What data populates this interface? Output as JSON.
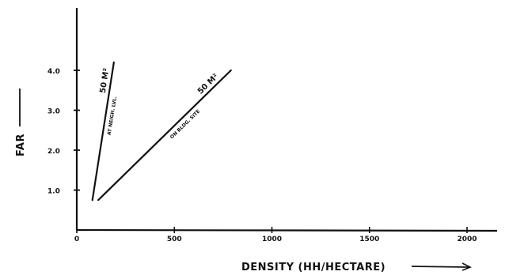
{
  "chart_data": {
    "type": "line",
    "title": "",
    "xlabel": "DENSITY (HH/HECTARE)",
    "ylabel": "FAR",
    "xlim": [
      0,
      2000
    ],
    "ylim": [
      0,
      5.0
    ],
    "x_ticks": [
      0,
      500,
      1000,
      1500,
      2000
    ],
    "x_tick_labels": [
      "0",
      "500",
      "1000",
      "1500",
      "2000"
    ],
    "y_ticks": [
      1.0,
      2.0,
      3.0,
      4.0
    ],
    "y_tick_labels": [
      "1.0",
      "2.0",
      "3.0",
      "4.0"
    ],
    "grid": false,
    "series": [
      {
        "name": "50 M²",
        "sublabel": "AT NEIGH. LVL.",
        "x": [
          80,
          190
        ],
        "y": [
          0.75,
          4.2
        ]
      },
      {
        "name": "50 M²",
        "sublabel": "ON BLDG. SITE",
        "x": [
          110,
          790
        ],
        "y": [
          0.75,
          4.0
        ]
      }
    ]
  }
}
